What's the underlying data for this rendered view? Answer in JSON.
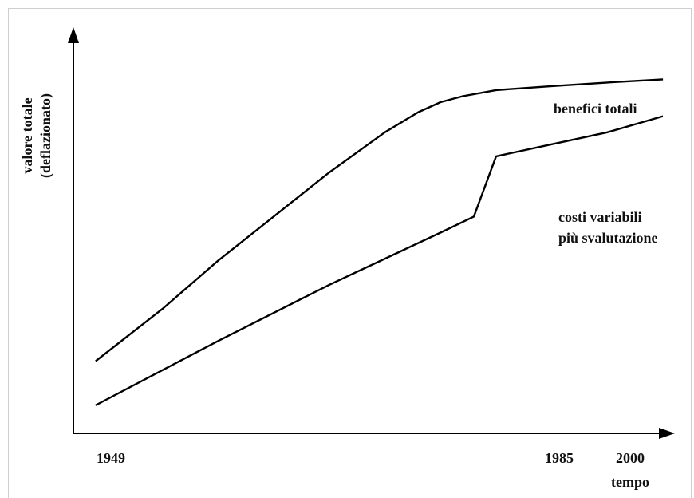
{
  "chart_data": {
    "type": "line",
    "title": "",
    "xlabel": "tempo",
    "ylabel_lines": [
      "valore totale",
      "(deflazionato)"
    ],
    "x_ticks": [
      "1949",
      "1985",
      "2000"
    ],
    "xlim": [
      1947,
      2001
    ],
    "ylim": [
      0,
      100
    ],
    "grid": false,
    "series": [
      {
        "name": "benefici totali",
        "x": [
          1949,
          1955,
          1960,
          1965,
          1970,
          1975,
          1978,
          1980,
          1982,
          1985,
          1990,
          1995,
          2000
        ],
        "y": [
          18,
          31,
          43,
          54,
          65,
          75,
          80,
          82.5,
          84,
          85.5,
          86.5,
          87.4,
          88.2
        ]
      },
      {
        "name_lines": [
          "costi variabili",
          "più svalutazione"
        ],
        "x": [
          1949,
          1960,
          1970,
          1980,
          1983,
          1985,
          1990,
          1995,
          2000
        ],
        "y": [
          7,
          23,
          37,
          50,
          54,
          69,
          72,
          75,
          79
        ]
      }
    ]
  }
}
